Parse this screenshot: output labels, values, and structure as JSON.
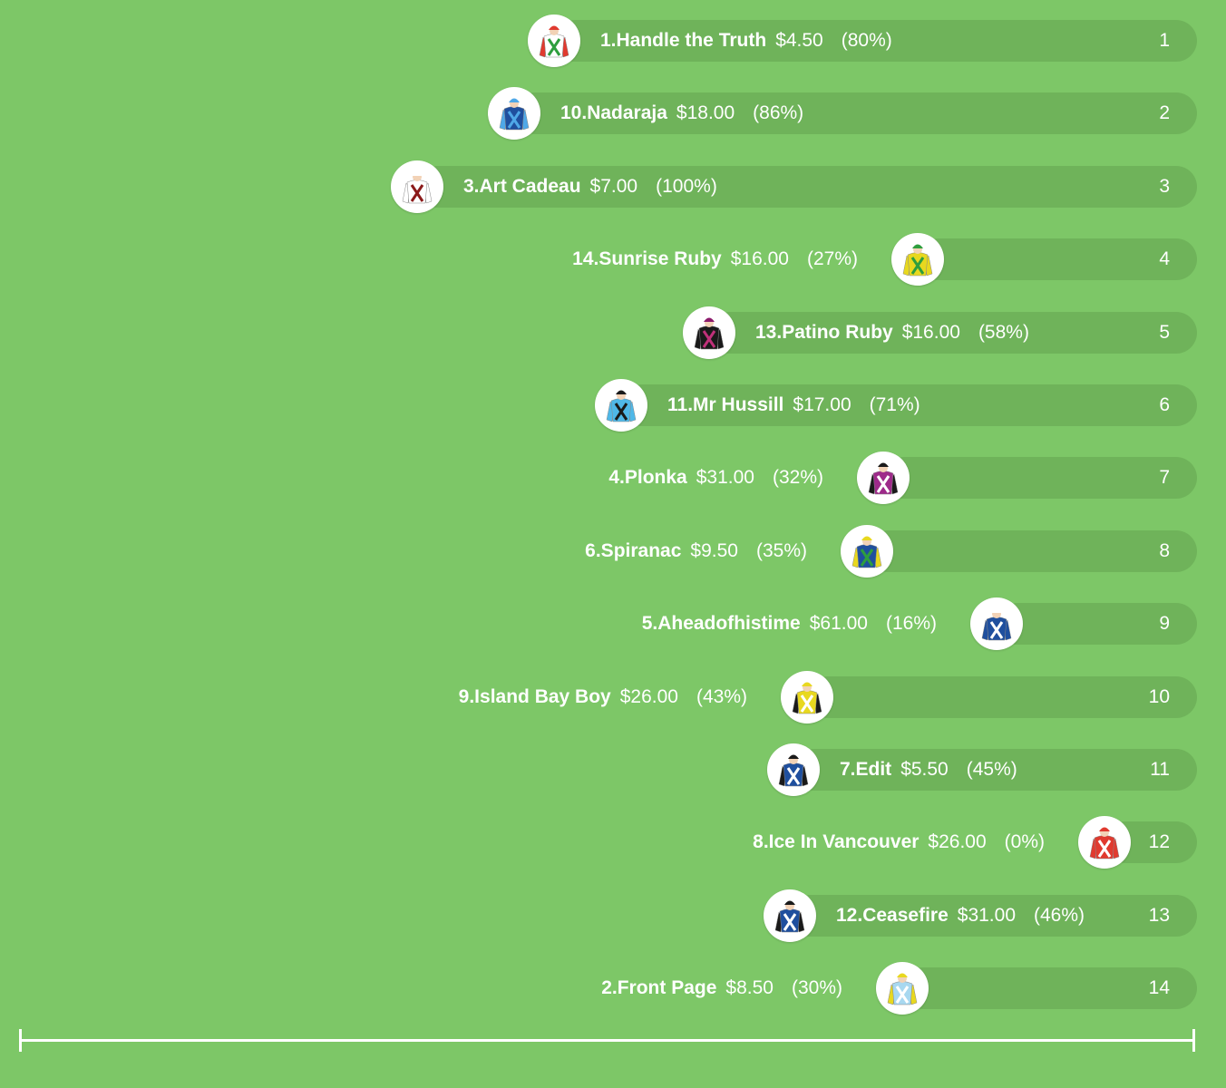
{
  "runners": [
    {
      "name": "1.Handle the Truth",
      "odds": "$4.50",
      "pct": "(80%)",
      "position": "1",
      "silks": {
        "body": "#ffffff",
        "sleeves": "#e03a2f",
        "cap": "#e03a2f",
        "pattern": "#2e9e3e"
      }
    },
    {
      "name": "10.Nadaraja",
      "odds": "$18.00",
      "pct": "(86%)",
      "position": "2",
      "silks": {
        "body": "#1f4f9e",
        "sleeves": "#4fa8e8",
        "cap": "#4fa8e8",
        "pattern": "#4fa8e8"
      }
    },
    {
      "name": "3.Art Cadeau",
      "odds": "$7.00",
      "pct": "(100%)",
      "position": "3",
      "silks": {
        "body": "#ffffff",
        "sleeves": "#ffffff",
        "cap": "#ffffff",
        "pattern": "#8b1a1a"
      }
    },
    {
      "name": "14.Sunrise Ruby",
      "odds": "$16.00",
      "pct": "(27%)",
      "position": "4",
      "silks": {
        "body": "#e8d81f",
        "sleeves": "#e8d81f",
        "cap": "#2e9e3e",
        "pattern": "#2e9e3e"
      }
    },
    {
      "name": "13.Patino Ruby",
      "odds": "$16.00",
      "pct": "(58%)",
      "position": "5",
      "silks": {
        "body": "#1a1a1a",
        "sleeves": "#1a1a1a",
        "cap": "#8b1a6b",
        "pattern": "#c0307a"
      }
    },
    {
      "name": "11.Mr Hussill",
      "odds": "$17.00",
      "pct": "(71%)",
      "position": "6",
      "silks": {
        "body": "#4fb8e8",
        "sleeves": "#4fb8e8",
        "cap": "#1a1a1a",
        "pattern": "#1a1a1a"
      }
    },
    {
      "name": "4.Plonka",
      "odds": "$31.00",
      "pct": "(32%)",
      "position": "7",
      "silks": {
        "body": "#9e2a8a",
        "sleeves": "#1a1a1a",
        "cap": "#1a1a1a",
        "pattern": "#ffffff"
      }
    },
    {
      "name": "6.Spiranac",
      "odds": "$9.50",
      "pct": "(35%)",
      "position": "8",
      "silks": {
        "body": "#1f4f9e",
        "sleeves": "#e8d81f",
        "cap": "#e8d81f",
        "pattern": "#2e9e3e"
      }
    },
    {
      "name": "5.Aheadofhistime",
      "odds": "$61.00",
      "pct": "(16%)",
      "position": "9",
      "silks": {
        "body": "#1f4f9e",
        "sleeves": "#1f4f9e",
        "cap": "#ffffff",
        "pattern": "#ffffff"
      }
    },
    {
      "name": "9.Island Bay Boy",
      "odds": "$26.00",
      "pct": "(43%)",
      "position": "10",
      "silks": {
        "body": "#e8d81f",
        "sleeves": "#1a1a1a",
        "cap": "#e8d81f",
        "pattern": "#ffffff"
      }
    },
    {
      "name": "7.Edit",
      "odds": "$5.50",
      "pct": "(45%)",
      "position": "11",
      "silks": {
        "body": "#1f4f9e",
        "sleeves": "#1a1a1a",
        "cap": "#1a1a1a",
        "pattern": "#ffffff"
      }
    },
    {
      "name": "8.Ice In Vancouver",
      "odds": "$26.00",
      "pct": "(0%)",
      "position": "12",
      "silks": {
        "body": "#e03a2f",
        "sleeves": "#e03a2f",
        "cap": "#e03a2f",
        "pattern": "#ffffff"
      }
    },
    {
      "name": "12.Ceasefire",
      "odds": "$31.00",
      "pct": "(46%)",
      "position": "13",
      "silks": {
        "body": "#1f4f9e",
        "sleeves": "#1a1a1a",
        "cap": "#1a1a1a",
        "pattern": "#ffffff"
      }
    },
    {
      "name": "2.Front Page",
      "odds": "$8.50",
      "pct": "(30%)",
      "position": "14",
      "silks": {
        "body": "#a8d8f0",
        "sleeves": "#e8d81f",
        "cap": "#e8d81f",
        "pattern": "#ffffff"
      }
    }
  ]
}
